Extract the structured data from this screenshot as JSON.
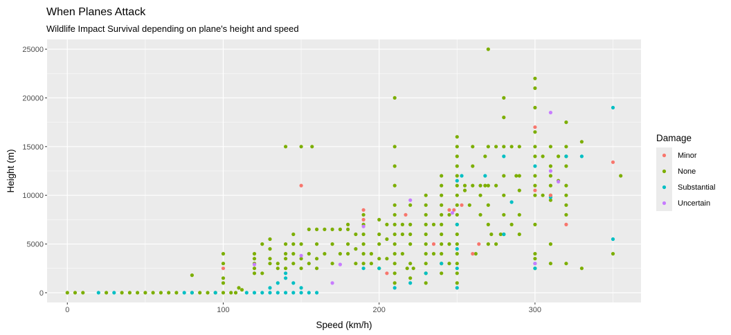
{
  "chart_data": {
    "type": "scatter",
    "title": "When Planes Attack",
    "subtitle": "Wildlife Impact Survival depending on plane's height and speed",
    "xlabel": "Speed (km/h)",
    "ylabel": "Height (m)",
    "xlim": [
      -13,
      368
    ],
    "ylim": [
      -1000,
      26000
    ],
    "x_ticks": [
      0,
      100,
      200,
      300
    ],
    "x_minor_ticks": [
      50,
      150,
      250,
      350
    ],
    "y_ticks": [
      0,
      5000,
      10000,
      15000,
      20000,
      25000
    ],
    "y_minor_ticks": [
      2500,
      7500,
      12500,
      17500,
      22500
    ],
    "grid": true,
    "legend_placement": "right",
    "legend_title": "Damage",
    "series": [
      {
        "name": "None",
        "color": "#7CAE00",
        "points": [
          [
            0,
            0
          ],
          [
            5,
            0
          ],
          [
            10,
            0
          ],
          [
            25,
            0
          ],
          [
            35,
            0
          ],
          [
            40,
            0
          ],
          [
            45,
            0
          ],
          [
            50,
            0
          ],
          [
            55,
            0
          ],
          [
            60,
            0
          ],
          [
            65,
            0
          ],
          [
            70,
            0
          ],
          [
            80,
            0
          ],
          [
            85,
            0
          ],
          [
            90,
            0
          ],
          [
            95,
            0
          ],
          [
            100,
            0
          ],
          [
            105,
            0
          ],
          [
            108,
            0
          ],
          [
            80,
            1800
          ],
          [
            100,
            1000
          ],
          [
            100,
            1500
          ],
          [
            100,
            3000
          ],
          [
            100,
            4000
          ],
          [
            110,
            500
          ],
          [
            112,
            300
          ],
          [
            120,
            2000
          ],
          [
            120,
            2500
          ],
          [
            120,
            3000
          ],
          [
            120,
            3500
          ],
          [
            120,
            4000
          ],
          [
            125,
            5000
          ],
          [
            125,
            2000
          ],
          [
            130,
            3500
          ],
          [
            130,
            4500
          ],
          [
            130,
            3000
          ],
          [
            130,
            5500
          ],
          [
            135,
            2500
          ],
          [
            135,
            3000
          ],
          [
            140,
            4000
          ],
          [
            140,
            5000
          ],
          [
            140,
            15000
          ],
          [
            140,
            2500
          ],
          [
            140,
            3500
          ],
          [
            145,
            5000
          ],
          [
            145,
            3000
          ],
          [
            145,
            4000
          ],
          [
            145,
            6000
          ],
          [
            150,
            5000
          ],
          [
            150,
            15000
          ],
          [
            150,
            3500
          ],
          [
            150,
            2500
          ],
          [
            155,
            6500
          ],
          [
            155,
            4000
          ],
          [
            155,
            3000
          ],
          [
            157,
            15000
          ],
          [
            160,
            5000
          ],
          [
            160,
            6500
          ],
          [
            160,
            2500
          ],
          [
            160,
            3500
          ],
          [
            165,
            6500
          ],
          [
            165,
            4000
          ],
          [
            170,
            5000
          ],
          [
            170,
            6500
          ],
          [
            170,
            3000
          ],
          [
            175,
            4000
          ],
          [
            175,
            6500
          ],
          [
            180,
            6500
          ],
          [
            180,
            5000
          ],
          [
            180,
            4000
          ],
          [
            180,
            7000
          ],
          [
            185,
            6000
          ],
          [
            185,
            3000
          ],
          [
            185,
            4500
          ],
          [
            190,
            6000
          ],
          [
            190,
            7000
          ],
          [
            190,
            8000
          ],
          [
            190,
            5000
          ],
          [
            190,
            3000
          ],
          [
            190,
            4000
          ],
          [
            195,
            4000
          ],
          [
            195,
            3000
          ],
          [
            200,
            5000
          ],
          [
            200,
            6000
          ],
          [
            200,
            7500
          ],
          [
            200,
            3500
          ],
          [
            200,
            2500
          ],
          [
            205,
            7000
          ],
          [
            205,
            3500
          ],
          [
            205,
            5500
          ],
          [
            210,
            20000
          ],
          [
            210,
            15000
          ],
          [
            210,
            13000
          ],
          [
            210,
            11000
          ],
          [
            210,
            9000
          ],
          [
            210,
            8000
          ],
          [
            210,
            7000
          ],
          [
            210,
            6000
          ],
          [
            210,
            5000
          ],
          [
            210,
            4000
          ],
          [
            210,
            3000
          ],
          [
            210,
            2000
          ],
          [
            210,
            1000
          ],
          [
            215,
            6000
          ],
          [
            215,
            7000
          ],
          [
            215,
            4000
          ],
          [
            218,
            2500
          ],
          [
            220,
            7000
          ],
          [
            220,
            6000
          ],
          [
            220,
            5000
          ],
          [
            220,
            9000
          ],
          [
            220,
            3000
          ],
          [
            220,
            1500
          ],
          [
            222,
            2500
          ],
          [
            230,
            10000
          ],
          [
            230,
            9000
          ],
          [
            230,
            8000
          ],
          [
            230,
            7000
          ],
          [
            230,
            6000
          ],
          [
            230,
            5000
          ],
          [
            230,
            4000
          ],
          [
            230,
            3000
          ],
          [
            230,
            2000
          ],
          [
            230,
            1000
          ],
          [
            235,
            4000
          ],
          [
            235,
            7000
          ],
          [
            240,
            12000
          ],
          [
            240,
            11000
          ],
          [
            240,
            10000
          ],
          [
            240,
            9000
          ],
          [
            240,
            8000
          ],
          [
            240,
            7000
          ],
          [
            240,
            6000
          ],
          [
            240,
            5000
          ],
          [
            240,
            4000
          ],
          [
            240,
            3000
          ],
          [
            240,
            2000
          ],
          [
            245,
            5000
          ],
          [
            245,
            8000
          ],
          [
            245,
            3000
          ],
          [
            250,
            16000
          ],
          [
            250,
            15000
          ],
          [
            250,
            14000
          ],
          [
            250,
            13000
          ],
          [
            250,
            12000
          ],
          [
            250,
            11000
          ],
          [
            250,
            10000
          ],
          [
            250,
            9000
          ],
          [
            250,
            8000
          ],
          [
            250,
            7000
          ],
          [
            250,
            6000
          ],
          [
            250,
            5000
          ],
          [
            250,
            4000
          ],
          [
            250,
            3000
          ],
          [
            250,
            2000
          ],
          [
            250,
            1000
          ],
          [
            255,
            11000
          ],
          [
            255,
            10500
          ],
          [
            258,
            9000
          ],
          [
            260,
            15000
          ],
          [
            260,
            13000
          ],
          [
            260,
            11000
          ],
          [
            262,
            4000
          ],
          [
            265,
            10000
          ],
          [
            265,
            8000
          ],
          [
            265,
            11000
          ],
          [
            268,
            14000
          ],
          [
            268,
            11000
          ],
          [
            270,
            25000
          ],
          [
            270,
            15000
          ],
          [
            270,
            11000
          ],
          [
            270,
            9000
          ],
          [
            270,
            7000
          ],
          [
            270,
            5000
          ],
          [
            272,
            6000
          ],
          [
            275,
            5000
          ],
          [
            275,
            11000
          ],
          [
            275,
            15000
          ],
          [
            278,
            6000
          ],
          [
            280,
            20000
          ],
          [
            280,
            18000
          ],
          [
            280,
            15000
          ],
          [
            280,
            12000
          ],
          [
            280,
            10000
          ],
          [
            280,
            8000
          ],
          [
            280,
            6000
          ],
          [
            285,
            15000
          ],
          [
            285,
            7000
          ],
          [
            288,
            12000
          ],
          [
            290,
            15000
          ],
          [
            290,
            12000
          ],
          [
            290,
            10500
          ],
          [
            290,
            8000
          ],
          [
            290,
            6000
          ],
          [
            300,
            22000
          ],
          [
            300,
            21000
          ],
          [
            300,
            19000
          ],
          [
            300,
            16500
          ],
          [
            300,
            15000
          ],
          [
            300,
            14000
          ],
          [
            300,
            12000
          ],
          [
            300,
            11000
          ],
          [
            300,
            10000
          ],
          [
            300,
            7000
          ],
          [
            300,
            4000
          ],
          [
            300,
            3500
          ],
          [
            300,
            2500
          ],
          [
            305,
            10000
          ],
          [
            305,
            14000
          ],
          [
            310,
            15000
          ],
          [
            310,
            13000
          ],
          [
            310,
            12000
          ],
          [
            310,
            11000
          ],
          [
            310,
            10000
          ],
          [
            310,
            9500
          ],
          [
            310,
            5000
          ],
          [
            310,
            3000
          ],
          [
            315,
            14000
          ],
          [
            315,
            11500
          ],
          [
            320,
            17500
          ],
          [
            320,
            15000
          ],
          [
            320,
            14000
          ],
          [
            320,
            13000
          ],
          [
            320,
            11000
          ],
          [
            320,
            10000
          ],
          [
            320,
            9000
          ],
          [
            320,
            8000
          ],
          [
            320,
            3000
          ],
          [
            330,
            15500
          ],
          [
            330,
            2500
          ],
          [
            350,
            4000
          ],
          [
            355,
            12000
          ]
        ]
      },
      {
        "name": "Substantial",
        "color": "#00BFC4",
        "points": [
          [
            20,
            0
          ],
          [
            30,
            0
          ],
          [
            75,
            0
          ],
          [
            80,
            0
          ],
          [
            95,
            0
          ],
          [
            115,
            0
          ],
          [
            120,
            0
          ],
          [
            125,
            0
          ],
          [
            130,
            0
          ],
          [
            135,
            0
          ],
          [
            140,
            0
          ],
          [
            145,
            0
          ],
          [
            150,
            0
          ],
          [
            155,
            0
          ],
          [
            160,
            0
          ],
          [
            130,
            500
          ],
          [
            135,
            1000
          ],
          [
            140,
            1500
          ],
          [
            145,
            1000
          ],
          [
            140,
            2000
          ],
          [
            150,
            500
          ],
          [
            190,
            2500
          ],
          [
            200,
            2500
          ],
          [
            210,
            500
          ],
          [
            220,
            1000
          ],
          [
            230,
            2000
          ],
          [
            240,
            3000
          ],
          [
            250,
            11500
          ],
          [
            250,
            7000
          ],
          [
            250,
            4500
          ],
          [
            250,
            2500
          ],
          [
            250,
            500
          ],
          [
            253,
            12000
          ],
          [
            268,
            12000
          ],
          [
            280,
            14000
          ],
          [
            285,
            9300
          ],
          [
            280,
            6000
          ],
          [
            300,
            3000
          ],
          [
            300,
            13000
          ],
          [
            300,
            2500
          ],
          [
            310,
            9800
          ],
          [
            320,
            14000
          ],
          [
            330,
            14000
          ],
          [
            350,
            19000
          ],
          [
            350,
            5500
          ]
        ]
      },
      {
        "name": "Minor",
        "color": "#F8766D",
        "points": [
          [
            100,
            2500
          ],
          [
            150,
            11000
          ],
          [
            190,
            8500
          ],
          [
            190,
            7500
          ],
          [
            205,
            2000
          ],
          [
            217,
            8000
          ],
          [
            235,
            5000
          ],
          [
            245,
            8500
          ],
          [
            248,
            8500
          ],
          [
            253,
            9000
          ],
          [
            260,
            4000
          ],
          [
            264,
            5000
          ],
          [
            300,
            17000
          ],
          [
            300,
            10500
          ],
          [
            310,
            10000
          ],
          [
            320,
            7000
          ],
          [
            350,
            13400
          ]
        ]
      },
      {
        "name": "Uncertain",
        "color": "#C77CFF",
        "points": [
          [
            120,
            2900
          ],
          [
            150,
            3800
          ],
          [
            170,
            1000
          ],
          [
            175,
            2900
          ],
          [
            190,
            6800
          ],
          [
            220,
            9500
          ],
          [
            247,
            8200
          ],
          [
            300,
            3000
          ],
          [
            310,
            18500
          ],
          [
            310,
            12500
          ],
          [
            315,
            11400
          ]
        ]
      }
    ],
    "legend_order": [
      "Minor",
      "None",
      "Substantial",
      "Uncertain"
    ],
    "panel_background": "#EBEBEB",
    "grid_color": "#FFFFFF"
  }
}
